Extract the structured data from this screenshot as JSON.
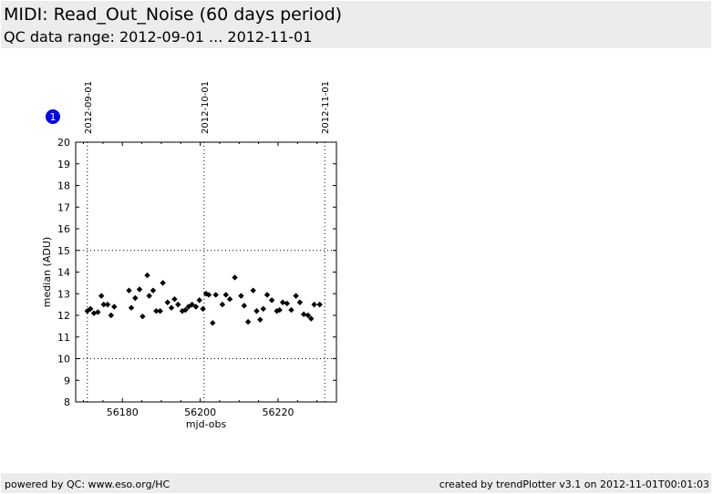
{
  "header": {
    "title": "MIDI: Read_Out_Noise (60 days period)",
    "subtitle": "QC data range: 2012-09-01 ... 2012-11-01"
  },
  "badge": {
    "label": "1",
    "color": "#0000ee"
  },
  "footer": {
    "left": "powered by QC: www.eso.org/HC",
    "right": "created by trendPlotter v3.1 on 2012-11-01T00:01:03"
  },
  "chart_data": {
    "type": "scatter",
    "xlabel": "mjd-obs",
    "ylabel": "median (ADU)",
    "xlim": [
      56168,
      56235
    ],
    "ylim": [
      8,
      20
    ],
    "xticks": [
      56180,
      56200,
      56220
    ],
    "yticks": [
      8,
      9,
      10,
      11,
      12,
      13,
      14,
      15,
      16,
      17,
      18,
      19,
      20
    ],
    "reference_lines_y": [
      10,
      15
    ],
    "date_markers": [
      {
        "x": 56171.0,
        "label": "2012-09-01"
      },
      {
        "x": 56201.0,
        "label": "2012-10-01"
      },
      {
        "x": 56232.0,
        "label": "2012-11-01"
      }
    ],
    "marker_color": "#000000",
    "x": [
      56171.0,
      56171.8,
      56172.7,
      56173.7,
      56174.6,
      56175.2,
      56176.2,
      56177.1,
      56177.9,
      56181.7,
      56182.3,
      56183.3,
      56184.4,
      56185.2,
      56186.4,
      56186.9,
      56187.9,
      56188.7,
      56189.7,
      56190.4,
      56191.6,
      56192.6,
      56193.4,
      56194.3,
      56195.4,
      56196.2,
      56197.0,
      56197.9,
      56198.9,
      56199.8,
      56200.7,
      56201.5,
      56202.2,
      56203.2,
      56204.0,
      56205.7,
      56206.6,
      56207.6,
      56208.9,
      56210.5,
      56211.3,
      56212.3,
      56213.6,
      56214.5,
      56215.4,
      56216.2,
      56217.2,
      56218.4,
      56219.7,
      56220.4,
      56221.2,
      56222.3,
      56223.4,
      56224.6,
      56225.6,
      56226.6,
      56227.7,
      56228.5,
      56229.3,
      56230.7
    ],
    "y": [
      12.2,
      12.3,
      12.1,
      12.15,
      12.9,
      12.5,
      12.5,
      12.0,
      12.4,
      13.15,
      12.35,
      12.8,
      13.2,
      11.95,
      13.85,
      12.9,
      13.15,
      12.2,
      12.2,
      13.5,
      12.6,
      12.35,
      12.75,
      12.5,
      12.2,
      12.25,
      12.4,
      12.5,
      12.4,
      12.7,
      12.3,
      13.0,
      12.95,
      11.65,
      12.95,
      12.5,
      12.95,
      12.75,
      13.75,
      12.9,
      12.45,
      11.7,
      13.15,
      12.2,
      11.8,
      12.3,
      12.95,
      12.7,
      12.2,
      12.25,
      12.6,
      12.55,
      12.25,
      12.9,
      12.6,
      12.05,
      12.0,
      11.85,
      12.5,
      12.5
    ]
  }
}
